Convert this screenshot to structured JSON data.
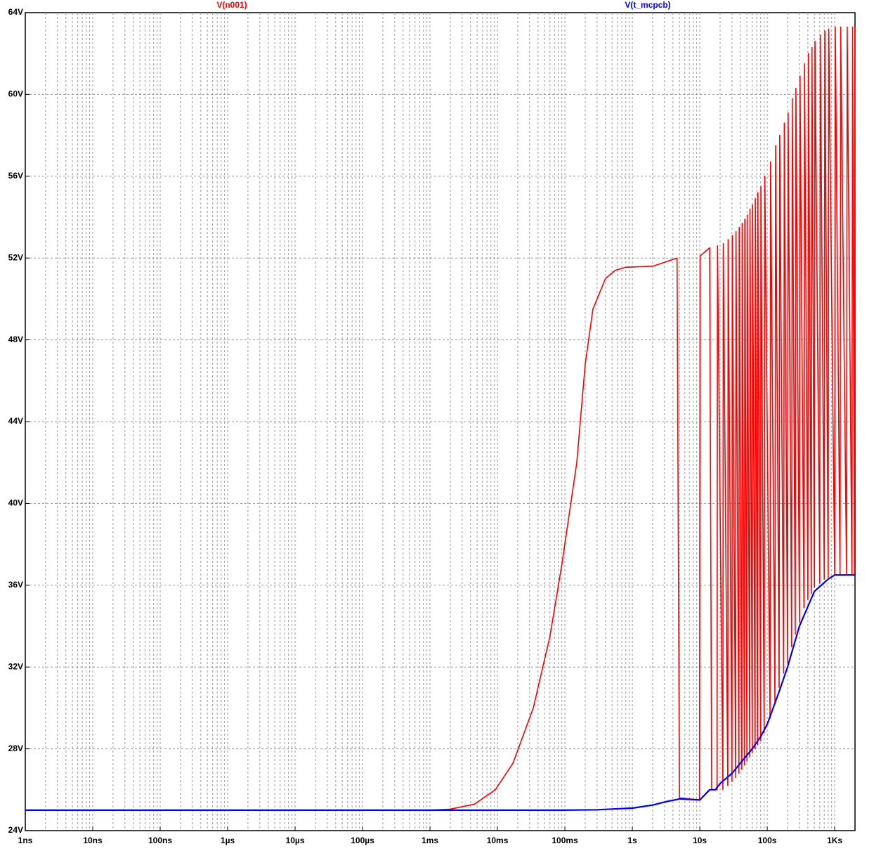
{
  "chart_data": {
    "type": "line",
    "x_scale": "log",
    "grid": true,
    "minor_grid": true,
    "xlim": [
      1e-09,
      2000
    ],
    "ylim": [
      24,
      64
    ],
    "xticks": [
      {
        "value": 1e-09,
        "label": "1ns"
      },
      {
        "value": 1e-08,
        "label": "10ns"
      },
      {
        "value": 1e-07,
        "label": "100ns"
      },
      {
        "value": 1e-06,
        "label": "1µs"
      },
      {
        "value": 1e-05,
        "label": "10µs"
      },
      {
        "value": 0.0001,
        "label": "100µs"
      },
      {
        "value": 0.001,
        "label": "1ms"
      },
      {
        "value": 0.01,
        "label": "10ms"
      },
      {
        "value": 0.1,
        "label": "100ms"
      },
      {
        "value": 1,
        "label": "1s"
      },
      {
        "value": 10,
        "label": "10s"
      },
      {
        "value": 100,
        "label": "100s"
      },
      {
        "value": 1000,
        "label": "1Ks"
      }
    ],
    "yticks": [
      {
        "value": 24,
        "label": "24V"
      },
      {
        "value": 28,
        "label": "28V"
      },
      {
        "value": 32,
        "label": "32V"
      },
      {
        "value": 36,
        "label": "36V"
      },
      {
        "value": 40,
        "label": "40V"
      },
      {
        "value": 44,
        "label": "44V"
      },
      {
        "value": 48,
        "label": "48V"
      },
      {
        "value": 52,
        "label": "52V"
      },
      {
        "value": 56,
        "label": "56V"
      },
      {
        "value": 60,
        "label": "60V"
      },
      {
        "value": 64,
        "label": "64V"
      }
    ],
    "series": [
      {
        "name": "V(n001)",
        "color": "#ff0000",
        "x": [
          1e-09,
          0.001,
          0.002,
          0.0046,
          0.0093,
          0.017,
          0.034,
          0.06,
          0.09,
          0.15,
          0.2,
          0.26,
          0.4,
          0.56,
          0.8,
          2,
          4.6,
          5,
          9.9,
          10.1,
          14,
          15,
          18,
          18.3,
          22,
          22.3,
          26,
          26.3,
          30,
          30.3,
          34,
          34.4,
          38,
          38.4,
          42,
          42.5,
          46,
          46.5,
          50,
          50.5,
          55,
          55.5,
          60,
          60.5,
          66,
          66.5,
          72,
          72.5,
          80,
          80.5,
          90,
          92,
          110,
          112,
          130,
          133,
          150,
          153,
          175,
          179,
          200,
          204,
          230,
          235,
          260,
          266,
          300,
          306,
          350,
          357,
          400,
          408,
          450,
          460,
          500,
          510,
          600,
          612,
          700,
          714,
          800,
          816,
          1000,
          1020,
          1200,
          1225,
          1500,
          1530,
          1800,
          1840,
          1960,
          1990
        ],
        "values": [
          25,
          25,
          25.05,
          25.3,
          26,
          27.3,
          30,
          33.5,
          37,
          42,
          46.8,
          49.5,
          51,
          51.4,
          51.55,
          51.6,
          52,
          25.6,
          25.5,
          52.1,
          52.5,
          26,
          26,
          52.6,
          26,
          52.7,
          26.2,
          52.9,
          26.4,
          53.1,
          26.6,
          53.3,
          26.8,
          53.5,
          27,
          53.7,
          27.2,
          53.9,
          27.4,
          54.1,
          27.6,
          54.4,
          27.8,
          54.6,
          28,
          54.9,
          28.2,
          55.2,
          28.4,
          55.5,
          28.8,
          56,
          29.5,
          56.7,
          30.3,
          57.5,
          31,
          58,
          31.7,
          58.6,
          32.2,
          59.1,
          33,
          59.8,
          33.6,
          60.3,
          34.2,
          60.9,
          34.9,
          61.5,
          35.3,
          62,
          35.6,
          62.3,
          35.9,
          62.6,
          36.1,
          62.9,
          36.3,
          63.1,
          36.4,
          63.2,
          36.5,
          63.3,
          36.5,
          63.3,
          36.5,
          63.3,
          36.5,
          63.3,
          36.5,
          63.3
        ]
      },
      {
        "name": "V(t_mcpcb)",
        "color": "#0000ff",
        "x": [
          1e-09,
          0.1,
          0.3,
          1,
          2,
          3,
          5,
          10,
          14,
          17,
          20,
          30,
          40,
          60,
          80,
          100,
          150,
          200,
          300,
          500,
          800,
          1000,
          2000
        ],
        "values": [
          25,
          25,
          25.02,
          25.1,
          25.25,
          25.4,
          25.55,
          25.5,
          26,
          26,
          26.3,
          26.8,
          27.3,
          28,
          28.6,
          29.2,
          30.8,
          32,
          34,
          35.7,
          36.3,
          36.5,
          36.5
        ]
      }
    ]
  }
}
